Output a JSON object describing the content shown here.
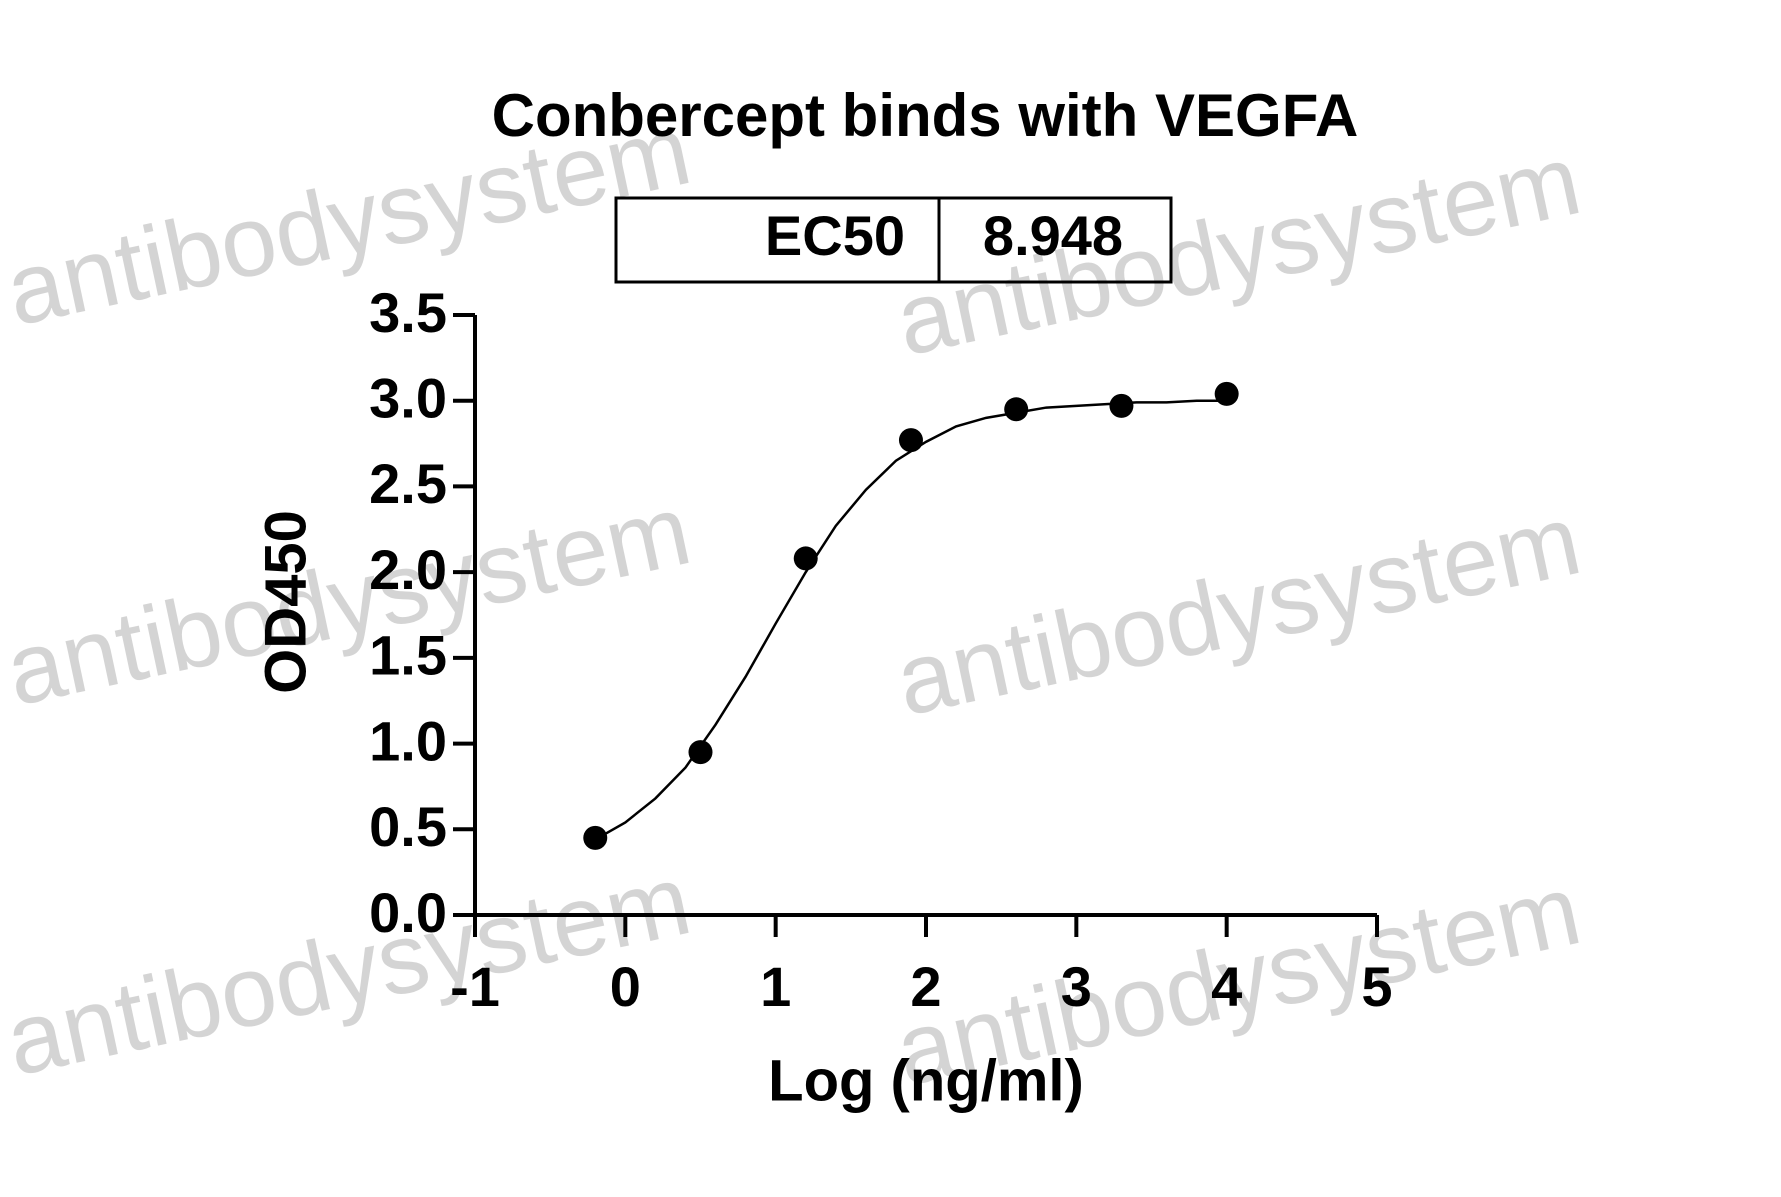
{
  "chart_data": {
    "type": "scatter",
    "title": "Conbercept binds with VEGFA",
    "annotation": {
      "label": "EC50",
      "value": "8.948"
    },
    "x_label": "Log (ng/ml)",
    "y_label": "OD450",
    "watermark": "antibodysystem",
    "xlim": [
      -1,
      5
    ],
    "xticks": [
      -1,
      0,
      1,
      2,
      3,
      4,
      5
    ],
    "ylim": [
      0,
      3.5
    ],
    "yticks": [
      {
        "value": 0,
        "label": "0.0"
      },
      {
        "value": 0.5,
        "label": "0.5"
      },
      {
        "value": 1,
        "label": "1.0"
      },
      {
        "value": 1.5,
        "label": "1.5"
      },
      {
        "value": 2,
        "label": "2.0"
      },
      {
        "value": 2.5,
        "label": "2.5"
      },
      {
        "value": 3,
        "label": "3.0"
      },
      {
        "value": 3.5,
        "label": "3.5"
      }
    ],
    "color": "#000000",
    "points": {
      "x": [
        -0.2,
        0.5,
        1.2,
        1.9,
        2.6,
        3.3,
        4.0
      ],
      "values": [
        0.45,
        0.95,
        2.08,
        2.77,
        2.95,
        2.97,
        3.04
      ]
    },
    "fit": {
      "x": [
        -0.2,
        0,
        0.2,
        0.4,
        0.6,
        0.8,
        1.0,
        1.2,
        1.4,
        1.6,
        1.8,
        2.0,
        2.2,
        2.4,
        2.6,
        2.8,
        3.0,
        3.2,
        3.4,
        3.6,
        3.8,
        4.0
      ],
      "values": [
        0.44,
        0.54,
        0.68,
        0.86,
        1.11,
        1.39,
        1.7,
        2.0,
        2.27,
        2.48,
        2.65,
        2.76,
        2.85,
        2.9,
        2.93,
        2.96,
        2.97,
        2.98,
        2.99,
        2.99,
        3.0,
        3.0
      ]
    }
  }
}
